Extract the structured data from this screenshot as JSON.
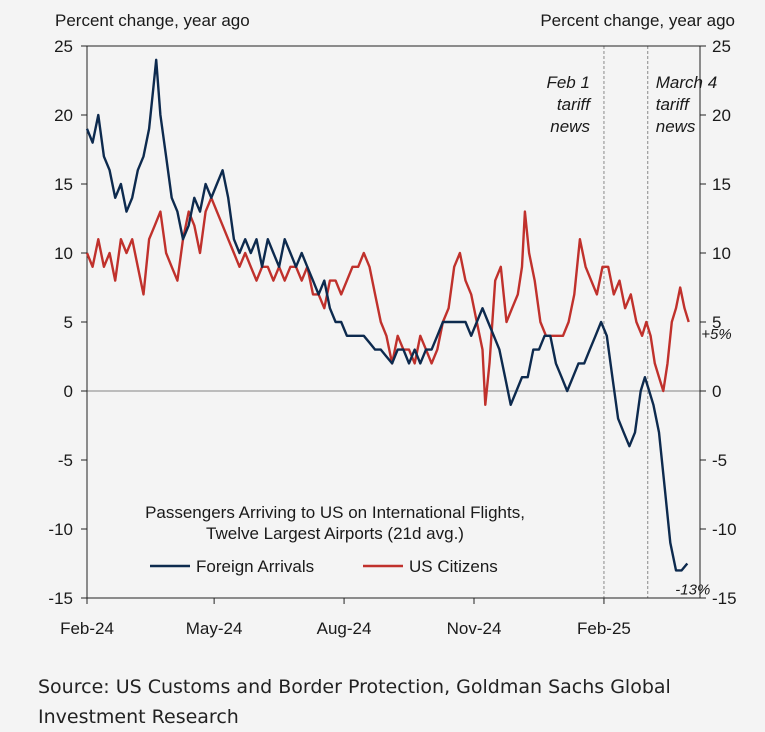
{
  "chart_data": {
    "type": "line",
    "left_axis_label": "Percent change, year ago",
    "right_axis_label": "Percent change, year ago",
    "ylim": [
      -15,
      25
    ],
    "yticks": [
      25,
      20,
      15,
      10,
      5,
      0,
      -5,
      -10,
      -15
    ],
    "x_tick_labels": [
      "Feb-24",
      "May-24",
      "Aug-24",
      "Nov-24",
      "Feb-25"
    ],
    "x_tick_dates": [
      "2024-02-01",
      "2024-05-01",
      "2024-08-01",
      "2024-11-01",
      "2025-02-01"
    ],
    "x_range": [
      "2024-02-01",
      "2025-04-10"
    ],
    "title_lines": [
      "Passengers Arriving to US on International Flights,",
      "Twelve Largest Airports (21d avg.)"
    ],
    "annotations": [
      {
        "date": "2025-02-01",
        "lines": [
          "Feb 1",
          "tariff",
          "news"
        ]
      },
      {
        "date": "2025-03-04",
        "lines": [
          "March 4",
          "tariff",
          "news"
        ]
      }
    ],
    "end_labels": [
      {
        "series": "US Citizens",
        "text": "+5%",
        "date": "2025-04-01",
        "value": 5
      },
      {
        "series": "Foreign Arrivals",
        "text": "-13%",
        "date": "2025-04-01",
        "value": -13
      }
    ],
    "colors": {
      "foreign": "#0d2a4e",
      "us": "#c0312c",
      "zero_line": "#9a9a9a",
      "event_line": "#8a8a8a"
    },
    "series": [
      {
        "name": "Foreign Arrivals",
        "values": [
          [
            "2024-02-01",
            19
          ],
          [
            "2024-02-05",
            18
          ],
          [
            "2024-02-09",
            20
          ],
          [
            "2024-02-13",
            17
          ],
          [
            "2024-02-17",
            16
          ],
          [
            "2024-02-21",
            14
          ],
          [
            "2024-02-25",
            15
          ],
          [
            "2024-02-29",
            13
          ],
          [
            "2024-03-04",
            14
          ],
          [
            "2024-03-08",
            16
          ],
          [
            "2024-03-12",
            17
          ],
          [
            "2024-03-16",
            19
          ],
          [
            "2024-03-19",
            22
          ],
          [
            "2024-03-21",
            24
          ],
          [
            "2024-03-24",
            20
          ],
          [
            "2024-03-28",
            17
          ],
          [
            "2024-04-01",
            14
          ],
          [
            "2024-04-05",
            13
          ],
          [
            "2024-04-09",
            11
          ],
          [
            "2024-04-13",
            12
          ],
          [
            "2024-04-17",
            14
          ],
          [
            "2024-04-21",
            13
          ],
          [
            "2024-04-25",
            15
          ],
          [
            "2024-04-29",
            14
          ],
          [
            "2024-05-03",
            15
          ],
          [
            "2024-05-07",
            16
          ],
          [
            "2024-05-11",
            14
          ],
          [
            "2024-05-15",
            11
          ],
          [
            "2024-05-19",
            10
          ],
          [
            "2024-05-23",
            11
          ],
          [
            "2024-05-27",
            10
          ],
          [
            "2024-05-31",
            11
          ],
          [
            "2024-06-04",
            9
          ],
          [
            "2024-06-08",
            11
          ],
          [
            "2024-06-12",
            10
          ],
          [
            "2024-06-16",
            9
          ],
          [
            "2024-06-20",
            11
          ],
          [
            "2024-06-24",
            10
          ],
          [
            "2024-06-28",
            9
          ],
          [
            "2024-07-02",
            10
          ],
          [
            "2024-07-06",
            9
          ],
          [
            "2024-07-10",
            8
          ],
          [
            "2024-07-14",
            7
          ],
          [
            "2024-07-18",
            8
          ],
          [
            "2024-07-22",
            6
          ],
          [
            "2024-07-26",
            5
          ],
          [
            "2024-07-30",
            5
          ],
          [
            "2024-08-03",
            4
          ],
          [
            "2024-08-07",
            4
          ],
          [
            "2024-08-11",
            4
          ],
          [
            "2024-08-15",
            4
          ],
          [
            "2024-08-19",
            3.5
          ],
          [
            "2024-08-23",
            3
          ],
          [
            "2024-08-27",
            3
          ],
          [
            "2024-08-31",
            2.5
          ],
          [
            "2024-09-04",
            2
          ],
          [
            "2024-09-08",
            3
          ],
          [
            "2024-09-12",
            3
          ],
          [
            "2024-09-16",
            2
          ],
          [
            "2024-09-20",
            3
          ],
          [
            "2024-09-24",
            2
          ],
          [
            "2024-09-28",
            3
          ],
          [
            "2024-10-02",
            3
          ],
          [
            "2024-10-06",
            4
          ],
          [
            "2024-10-10",
            5
          ],
          [
            "2024-10-14",
            5
          ],
          [
            "2024-10-18",
            5
          ],
          [
            "2024-10-22",
            5
          ],
          [
            "2024-10-26",
            5
          ],
          [
            "2024-10-30",
            4
          ],
          [
            "2024-11-03",
            5
          ],
          [
            "2024-11-07",
            6
          ],
          [
            "2024-11-11",
            5
          ],
          [
            "2024-11-15",
            4
          ],
          [
            "2024-11-19",
            3
          ],
          [
            "2024-11-23",
            1
          ],
          [
            "2024-11-27",
            -1
          ],
          [
            "2024-12-01",
            0
          ],
          [
            "2024-12-05",
            1
          ],
          [
            "2024-12-09",
            1
          ],
          [
            "2024-12-13",
            3
          ],
          [
            "2024-12-17",
            3
          ],
          [
            "2024-12-21",
            4
          ],
          [
            "2024-12-25",
            4
          ],
          [
            "2024-12-29",
            2
          ],
          [
            "2025-01-02",
            1
          ],
          [
            "2025-01-06",
            0
          ],
          [
            "2025-01-10",
            1
          ],
          [
            "2025-01-14",
            2
          ],
          [
            "2025-01-18",
            2
          ],
          [
            "2025-01-22",
            3
          ],
          [
            "2025-01-26",
            4
          ],
          [
            "2025-01-30",
            5
          ],
          [
            "2025-02-03",
            4
          ],
          [
            "2025-02-07",
            1
          ],
          [
            "2025-02-11",
            -2
          ],
          [
            "2025-02-15",
            -3
          ],
          [
            "2025-02-19",
            -4
          ],
          [
            "2025-02-23",
            -3
          ],
          [
            "2025-02-27",
            0
          ],
          [
            "2025-03-02",
            1
          ],
          [
            "2025-03-05",
            0
          ],
          [
            "2025-03-08",
            -1
          ],
          [
            "2025-03-12",
            -3
          ],
          [
            "2025-03-16",
            -7
          ],
          [
            "2025-03-20",
            -11
          ],
          [
            "2025-03-24",
            -13
          ],
          [
            "2025-03-28",
            -13
          ],
          [
            "2025-04-01",
            -12.5
          ]
        ]
      },
      {
        "name": "US Citizens",
        "values": [
          [
            "2024-02-01",
            10
          ],
          [
            "2024-02-05",
            9
          ],
          [
            "2024-02-09",
            11
          ],
          [
            "2024-02-13",
            9
          ],
          [
            "2024-02-17",
            10
          ],
          [
            "2024-02-21",
            8
          ],
          [
            "2024-02-25",
            11
          ],
          [
            "2024-02-29",
            10
          ],
          [
            "2024-03-04",
            11
          ],
          [
            "2024-03-08",
            9
          ],
          [
            "2024-03-12",
            7
          ],
          [
            "2024-03-16",
            11
          ],
          [
            "2024-03-20",
            12
          ],
          [
            "2024-03-24",
            13
          ],
          [
            "2024-03-28",
            10
          ],
          [
            "2024-04-01",
            9
          ],
          [
            "2024-04-05",
            8
          ],
          [
            "2024-04-09",
            11
          ],
          [
            "2024-04-13",
            13
          ],
          [
            "2024-04-17",
            12
          ],
          [
            "2024-04-21",
            10
          ],
          [
            "2024-04-25",
            13
          ],
          [
            "2024-04-29",
            14
          ],
          [
            "2024-05-03",
            13
          ],
          [
            "2024-05-07",
            12
          ],
          [
            "2024-05-11",
            11
          ],
          [
            "2024-05-15",
            10
          ],
          [
            "2024-05-19",
            9
          ],
          [
            "2024-05-23",
            10
          ],
          [
            "2024-05-27",
            9
          ],
          [
            "2024-05-31",
            8
          ],
          [
            "2024-06-04",
            9
          ],
          [
            "2024-06-08",
            9
          ],
          [
            "2024-06-12",
            8
          ],
          [
            "2024-06-16",
            9
          ],
          [
            "2024-06-20",
            8
          ],
          [
            "2024-06-24",
            9
          ],
          [
            "2024-06-28",
            9
          ],
          [
            "2024-07-02",
            8
          ],
          [
            "2024-07-06",
            9
          ],
          [
            "2024-07-10",
            7
          ],
          [
            "2024-07-14",
            7
          ],
          [
            "2024-07-18",
            6
          ],
          [
            "2024-07-22",
            8
          ],
          [
            "2024-07-26",
            8
          ],
          [
            "2024-07-30",
            7
          ],
          [
            "2024-08-03",
            8
          ],
          [
            "2024-08-07",
            9
          ],
          [
            "2024-08-11",
            9
          ],
          [
            "2024-08-15",
            10
          ],
          [
            "2024-08-19",
            9
          ],
          [
            "2024-08-23",
            7
          ],
          [
            "2024-08-27",
            5
          ],
          [
            "2024-08-31",
            4
          ],
          [
            "2024-09-04",
            2
          ],
          [
            "2024-09-08",
            4
          ],
          [
            "2024-09-12",
            3
          ],
          [
            "2024-09-16",
            3
          ],
          [
            "2024-09-20",
            2
          ],
          [
            "2024-09-24",
            4
          ],
          [
            "2024-09-28",
            3
          ],
          [
            "2024-10-02",
            2
          ],
          [
            "2024-10-06",
            3
          ],
          [
            "2024-10-10",
            5
          ],
          [
            "2024-10-14",
            6
          ],
          [
            "2024-10-18",
            9
          ],
          [
            "2024-10-22",
            10
          ],
          [
            "2024-10-26",
            8
          ],
          [
            "2024-10-30",
            7
          ],
          [
            "2024-11-03",
            5
          ],
          [
            "2024-11-07",
            3
          ],
          [
            "2024-11-09",
            -1
          ],
          [
            "2024-11-12",
            2
          ],
          [
            "2024-11-16",
            8
          ],
          [
            "2024-11-20",
            9
          ],
          [
            "2024-11-24",
            5
          ],
          [
            "2024-11-28",
            6
          ],
          [
            "2024-12-02",
            7
          ],
          [
            "2024-12-05",
            9
          ],
          [
            "2024-12-07",
            13
          ],
          [
            "2024-12-10",
            10
          ],
          [
            "2024-12-14",
            8
          ],
          [
            "2024-12-18",
            5
          ],
          [
            "2024-12-22",
            4
          ],
          [
            "2024-12-26",
            4
          ],
          [
            "2024-12-30",
            4
          ],
          [
            "2025-01-03",
            4
          ],
          [
            "2025-01-07",
            5
          ],
          [
            "2025-01-11",
            7
          ],
          [
            "2025-01-15",
            11
          ],
          [
            "2025-01-19",
            9
          ],
          [
            "2025-01-23",
            8
          ],
          [
            "2025-01-27",
            7
          ],
          [
            "2025-01-31",
            9
          ],
          [
            "2025-02-04",
            9
          ],
          [
            "2025-02-08",
            7
          ],
          [
            "2025-02-12",
            8
          ],
          [
            "2025-02-16",
            6
          ],
          [
            "2025-02-20",
            7
          ],
          [
            "2025-02-24",
            5
          ],
          [
            "2025-02-28",
            4
          ],
          [
            "2025-03-03",
            5
          ],
          [
            "2025-03-06",
            4
          ],
          [
            "2025-03-09",
            2
          ],
          [
            "2025-03-12",
            1
          ],
          [
            "2025-03-15",
            0
          ],
          [
            "2025-03-18",
            2
          ],
          [
            "2025-03-21",
            5
          ],
          [
            "2025-03-24",
            6
          ],
          [
            "2025-03-27",
            7.5
          ],
          [
            "2025-03-30",
            6
          ],
          [
            "2025-04-02",
            5
          ]
        ]
      }
    ]
  },
  "source_text": "Source: US Customs and Border Protection, Goldman Sachs Global Investment Research"
}
